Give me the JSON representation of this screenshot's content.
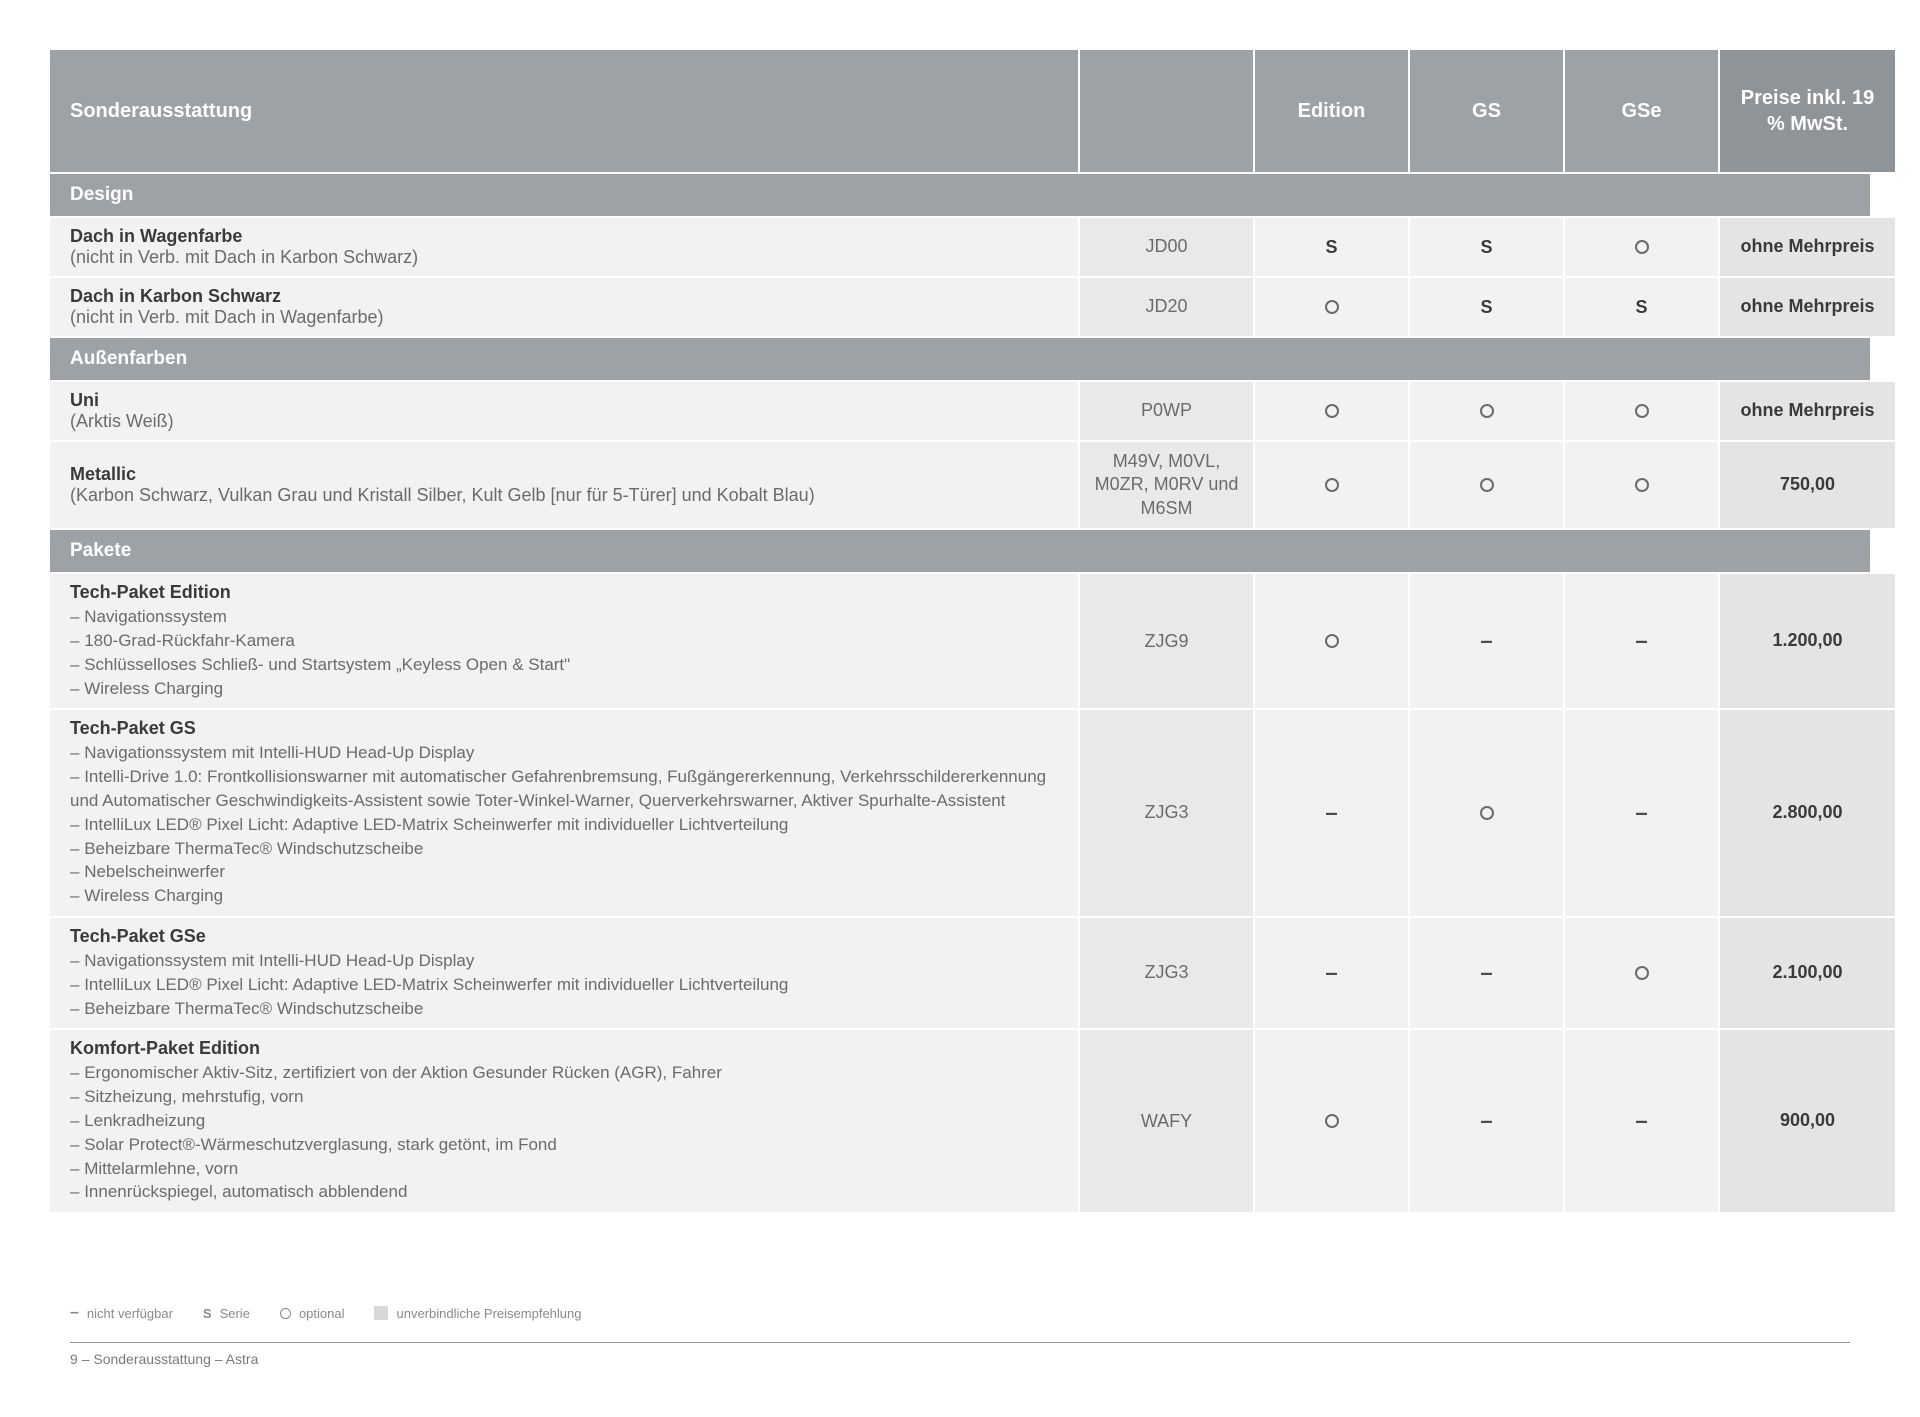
{
  "header": {
    "desc": "Sonderausstattung",
    "code_col": "",
    "trims": [
      "Edition",
      "GS",
      "GSe"
    ],
    "price": "Preise inkl. 19 % MwSt."
  },
  "sections": [
    {
      "title": "Design",
      "rows": [
        {
          "title": "Dach in Wagenfarbe",
          "subtitle": "(nicht in Verb. mit Dach in Karbon Schwarz)",
          "bullets": [],
          "code": "JD00",
          "trims": [
            "S",
            "S",
            "O"
          ],
          "price": "ohne Mehrpreis"
        },
        {
          "title": "Dach in Karbon Schwarz",
          "subtitle": "(nicht in Verb. mit Dach in Wagenfarbe)",
          "bullets": [],
          "code": "JD20",
          "trims": [
            "O",
            "S",
            "S"
          ],
          "price": "ohne Mehrpreis"
        }
      ]
    },
    {
      "title": "Außenfarben",
      "rows": [
        {
          "title": "Uni",
          "subtitle": "(Arktis Weiß)",
          "bullets": [],
          "code": "P0WP",
          "trims": [
            "O",
            "O",
            "O"
          ],
          "price": "ohne Mehrpreis"
        },
        {
          "title": "Metallic",
          "subtitle": "(Karbon Schwarz, Vulkan Grau und Kristall Silber, Kult Gelb [nur für 5-Türer] und Kobalt Blau)",
          "bullets": [],
          "code": "M49V, M0VL, M0ZR, M0RV und M6SM",
          "trims": [
            "O",
            "O",
            "O"
          ],
          "price": "750,00"
        }
      ]
    },
    {
      "title": "Pakete",
      "rows": [
        {
          "title": "Tech-Paket Edition",
          "subtitle": "",
          "bullets": [
            "Navigationssystem",
            "180-Grad-Rückfahr-Kamera",
            "Schlüsselloses Schließ- und Startsystem „Keyless Open & Start\"",
            "Wireless Charging"
          ],
          "code": "ZJG9",
          "trims": [
            "O",
            "-",
            "-"
          ],
          "price": "1.200,00"
        },
        {
          "title": "Tech-Paket GS",
          "subtitle": "",
          "bullets": [
            "Navigationssystem mit Intelli-HUD Head-Up Display",
            "Intelli-Drive 1.0: Frontkollisionswarner mit automatischer Gefahrenbremsung, Fußgängererkennung, Verkehrsschildererkennung und Automatischer Geschwindigkeits-Assistent sowie Toter-Winkel-Warner, Querverkehrswarner, Aktiver Spurhalte-Assistent",
            "IntelliLux LED® Pixel Licht: Adaptive LED-Matrix Scheinwerfer mit individueller Lichtverteilung",
            "Beheizbare ThermaTec® Windschutzscheibe",
            "Nebelscheinwerfer",
            "Wireless Charging"
          ],
          "code": "ZJG3",
          "trims": [
            "-",
            "O",
            "-"
          ],
          "price": "2.800,00"
        },
        {
          "title": "Tech-Paket GSe",
          "subtitle": "",
          "bullets": [
            "Navigationssystem mit Intelli-HUD Head-Up Display",
            "IntelliLux LED® Pixel Licht: Adaptive LED-Matrix Scheinwerfer mit individueller Lichtverteilung",
            "Beheizbare ThermaTec® Windschutzscheibe"
          ],
          "code": "ZJG3",
          "trims": [
            "-",
            "-",
            "O"
          ],
          "price": "2.100,00"
        },
        {
          "title": "Komfort-Paket Edition",
          "subtitle": "",
          "bullets": [
            "Ergonomischer Aktiv-Sitz, zertifiziert von der Aktion Gesunder Rücken (AGR), Fahrer",
            "Sitzheizung, mehrstufig, vorn",
            "Lenkradheizung",
            "Solar Protect®-Wärmeschutzverglasung, stark getönt, im Fond",
            "Mittelarmlehne, vorn",
            "Innenrückspiegel, automatisch abblendend"
          ],
          "code": "WAFY",
          "trims": [
            "O",
            "-",
            "-"
          ],
          "price": "900,00"
        }
      ]
    }
  ],
  "legend": {
    "not_available": "nicht verfügbar",
    "serie": "Serie",
    "optional": "optional",
    "price_note": "unverbindliche Preisempfehlung",
    "s_symbol": "S"
  },
  "footer": "9 – Sonderausstattung – Astra"
}
